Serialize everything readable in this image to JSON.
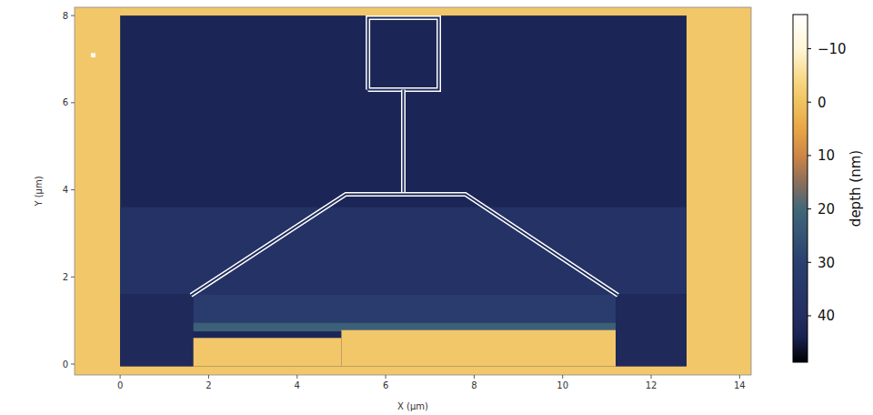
{
  "chart_data": {
    "type": "heatmap",
    "x_label": "X (µm)",
    "y_label": "Y (µm)",
    "color_label": "depth (nm)",
    "xlim": [
      -1.03,
      14.26
    ],
    "ylim": [
      -0.25,
      8.19
    ],
    "xticks": [
      0,
      2,
      4,
      6,
      8,
      10,
      12,
      14
    ],
    "yticks": [
      0,
      2,
      4,
      6,
      8
    ],
    "color_range": [
      -16.4,
      48.7
    ],
    "color_ticks": [
      {
        "value": -10,
        "label": "−10"
      },
      0,
      10,
      20,
      30,
      40
    ],
    "regions": [
      {
        "x": [
          -1.03,
          14.26
        ],
        "y": [
          -0.25,
          8.19
        ],
        "depth": -1
      },
      {
        "x": [
          0,
          12.8
        ],
        "y": [
          -0.05,
          8.0
        ],
        "depth": 43
      },
      {
        "x": [
          0,
          12.8
        ],
        "y": [
          1.6,
          3.6
        ],
        "depth": 38
      },
      {
        "x": [
          1.65,
          11.2
        ],
        "y": [
          0.95,
          1.6
        ],
        "depth": 32
      },
      {
        "x": [
          1.65,
          11.2
        ],
        "y": [
          0.75,
          0.95
        ],
        "depth": 22
      },
      {
        "x": [
          1.65,
          5.0
        ],
        "y": [
          -0.05,
          0.6
        ],
        "depth": -1
      },
      {
        "x": [
          5.0,
          11.2
        ],
        "y": [
          -0.05,
          0.78
        ],
        "depth": -1
      },
      {
        "x": [
          0,
          1.65
        ],
        "y": [
          -0.05,
          1.6
        ],
        "depth": 42
      },
      {
        "x": [
          11.2,
          12.8
        ],
        "y": [
          -0.05,
          1.6
        ],
        "depth": 42
      },
      {
        "x": [
          -0.66,
          -0.56
        ],
        "y": [
          7.04,
          7.14
        ],
        "depth": -14
      }
    ],
    "outline": [
      [
        [
          5.6,
          6.3
        ],
        [
          7.2,
          6.3
        ],
        [
          7.2,
          7.95
        ],
        [
          5.6,
          7.95
        ],
        [
          5.6,
          6.3
        ]
      ],
      [
        [
          6.4,
          3.9
        ],
        [
          6.4,
          6.3
        ]
      ],
      [
        [
          1.6,
          1.58
        ],
        [
          5.1,
          3.9
        ],
        [
          7.8,
          3.9
        ],
        [
          11.25,
          1.58
        ]
      ]
    ]
  }
}
